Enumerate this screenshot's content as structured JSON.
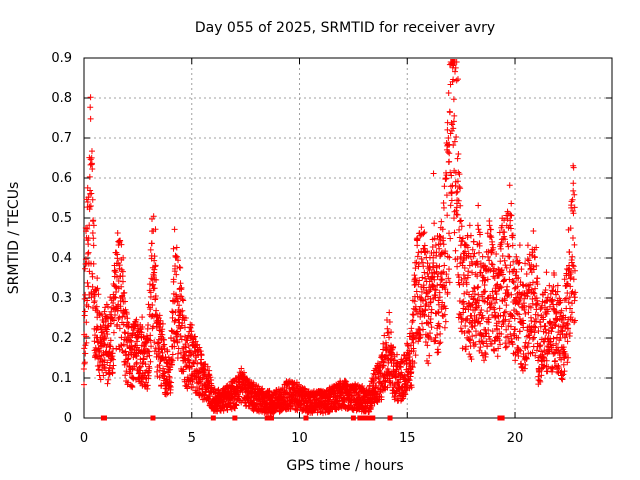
{
  "chart_data": {
    "type": "scatter",
    "title": "Day 055 of 2025, SRMTID for receiver avry",
    "xlabel": "GPS time / hours",
    "ylabel": "SRMTID / TECUs",
    "xlim": [
      0,
      24.5
    ],
    "ylim": [
      0,
      0.9
    ],
    "xticks": [
      0,
      5,
      10,
      15,
      20
    ],
    "xtick_labels": [
      "0",
      "5",
      "10",
      "15",
      "20"
    ],
    "yticks": [
      0,
      0.1,
      0.2,
      0.3,
      0.4,
      0.5,
      0.6,
      0.7,
      0.8,
      0.9
    ],
    "ytick_labels": [
      "0",
      "0.1",
      "0.2",
      "0.3",
      "0.4",
      "0.5",
      "0.6",
      "0.7",
      "0.8",
      "0.9"
    ],
    "grid": true,
    "marker": "+",
    "color": "#ff0000",
    "series": [
      {
        "name": "SRMTID",
        "envelope": [
          [
            0.0,
            0.17
          ],
          [
            0.1,
            0.35
          ],
          [
            0.2,
            0.42
          ],
          [
            0.3,
            0.6
          ],
          [
            0.4,
            0.4
          ],
          [
            0.5,
            0.3
          ],
          [
            0.7,
            0.2
          ],
          [
            0.9,
            0.18
          ],
          [
            1.1,
            0.17
          ],
          [
            1.3,
            0.2
          ],
          [
            1.5,
            0.33
          ],
          [
            1.7,
            0.3
          ],
          [
            1.9,
            0.2
          ],
          [
            2.1,
            0.15
          ],
          [
            2.3,
            0.16
          ],
          [
            2.5,
            0.17
          ],
          [
            2.7,
            0.15
          ],
          [
            2.9,
            0.13
          ],
          [
            3.0,
            0.18
          ],
          [
            3.2,
            0.4
          ],
          [
            3.4,
            0.2
          ],
          [
            3.6,
            0.15
          ],
          [
            3.8,
            0.12
          ],
          [
            4.0,
            0.1
          ],
          [
            4.2,
            0.3
          ],
          [
            4.4,
            0.28
          ],
          [
            4.6,
            0.2
          ],
          [
            4.8,
            0.13
          ],
          [
            5.0,
            0.16
          ],
          [
            5.2,
            0.13
          ],
          [
            5.5,
            0.1
          ],
          [
            5.8,
            0.08
          ],
          [
            6.0,
            0.05
          ],
          [
            6.3,
            0.04
          ],
          [
            6.6,
            0.05
          ],
          [
            7.0,
            0.06
          ],
          [
            7.3,
            0.08
          ],
          [
            7.6,
            0.06
          ],
          [
            8.0,
            0.05
          ],
          [
            8.4,
            0.04
          ],
          [
            8.8,
            0.04
          ],
          [
            9.2,
            0.05
          ],
          [
            9.6,
            0.06
          ],
          [
            10.0,
            0.05
          ],
          [
            10.4,
            0.04
          ],
          [
            10.8,
            0.04
          ],
          [
            11.2,
            0.04
          ],
          [
            11.6,
            0.05
          ],
          [
            12.0,
            0.06
          ],
          [
            12.4,
            0.05
          ],
          [
            12.8,
            0.05
          ],
          [
            13.2,
            0.04
          ],
          [
            13.5,
            0.08
          ],
          [
            13.8,
            0.1
          ],
          [
            14.0,
            0.14
          ],
          [
            14.2,
            0.16
          ],
          [
            14.4,
            0.1
          ],
          [
            14.6,
            0.09
          ],
          [
            14.8,
            0.1
          ],
          [
            15.0,
            0.12
          ],
          [
            15.2,
            0.15
          ],
          [
            15.4,
            0.3
          ],
          [
            15.6,
            0.35
          ],
          [
            15.8,
            0.3
          ],
          [
            16.0,
            0.25
          ],
          [
            16.2,
            0.38
          ],
          [
            16.4,
            0.28
          ],
          [
            16.6,
            0.35
          ],
          [
            16.8,
            0.45
          ],
          [
            17.0,
            0.62
          ],
          [
            17.1,
            0.8
          ],
          [
            17.2,
            0.7
          ],
          [
            17.4,
            0.45
          ],
          [
            17.6,
            0.3
          ],
          [
            17.8,
            0.32
          ],
          [
            18.0,
            0.28
          ],
          [
            18.2,
            0.33
          ],
          [
            18.4,
            0.32
          ],
          [
            18.6,
            0.26
          ],
          [
            18.8,
            0.36
          ],
          [
            19.0,
            0.3
          ],
          [
            19.2,
            0.28
          ],
          [
            19.4,
            0.35
          ],
          [
            19.6,
            0.32
          ],
          [
            19.8,
            0.38
          ],
          [
            20.0,
            0.26
          ],
          [
            20.2,
            0.28
          ],
          [
            20.4,
            0.22
          ],
          [
            20.6,
            0.27
          ],
          [
            20.8,
            0.3
          ],
          [
            21.0,
            0.3
          ],
          [
            21.1,
            0.12
          ],
          [
            21.2,
            0.2
          ],
          [
            21.4,
            0.22
          ],
          [
            21.6,
            0.2
          ],
          [
            21.8,
            0.23
          ],
          [
            22.0,
            0.22
          ],
          [
            22.2,
            0.18
          ],
          [
            22.4,
            0.25
          ],
          [
            22.6,
            0.35
          ],
          [
            22.7,
            0.48
          ],
          [
            22.8,
            0.3
          ]
        ],
        "zero_points": [
          0.9,
          0.95,
          3.2,
          6.0,
          7.0,
          8.5,
          8.7,
          10.3,
          12.5,
          12.8,
          13.0,
          13.2,
          13.4,
          14.2,
          19.3,
          19.4
        ]
      }
    ]
  }
}
